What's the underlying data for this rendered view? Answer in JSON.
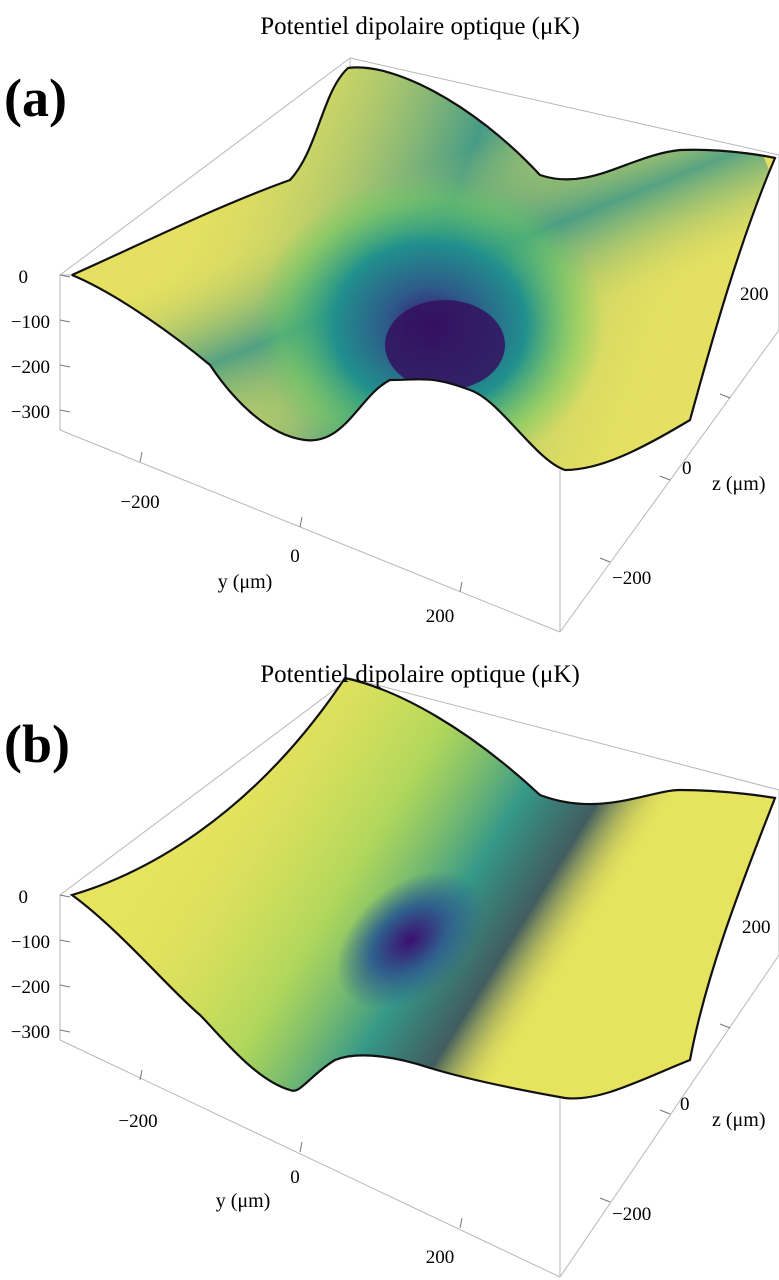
{
  "colors": {
    "colormap": "viridis",
    "box": "#b7b7b7",
    "outline": "#111111"
  },
  "chart_data": [
    {
      "type": "surface3d",
      "panel_label": "(a)",
      "title": "Potentiel dipolaire optique (μK)",
      "x": {
        "label": "y (μm)",
        "ticks": [
          "−200",
          "0",
          "200"
        ],
        "range": [
          -300,
          300
        ]
      },
      "y": {
        "label": "z (μm)",
        "ticks": [
          "−200",
          "0",
          "200"
        ],
        "range": [
          -300,
          300
        ]
      },
      "z": {
        "label": "",
        "ticks": [
          "0",
          "−100",
          "−200",
          "−300"
        ],
        "range": [
          -390,
          0
        ]
      },
      "minimum": {
        "y": 0,
        "z": 0,
        "value": -390
      },
      "surface": "two crossed gaussian-like wells; deepest at the center, shallower wells extending along y and along z",
      "colorbar": "none"
    },
    {
      "type": "surface3d",
      "panel_label": "(b)",
      "title": "Potentiel dipolaire optique (μK)",
      "x": {
        "label": "y (μm)",
        "ticks": [
          "−200",
          "0",
          "200"
        ],
        "range": [
          -300,
          300
        ]
      },
      "y": {
        "label": "z (μm)",
        "ticks": [
          "−200",
          "0",
          "200"
        ],
        "range": [
          -300,
          300
        ]
      },
      "z": {
        "label": "",
        "ticks": [
          "0",
          "−100",
          "−200",
          "−300"
        ],
        "range": [
          -390,
          0
        ]
      },
      "minimum": {
        "y": 0,
        "z": 0,
        "value": -390
      },
      "surface": "single elongated trough along z with a local dip at the center",
      "colorbar": "none"
    }
  ]
}
